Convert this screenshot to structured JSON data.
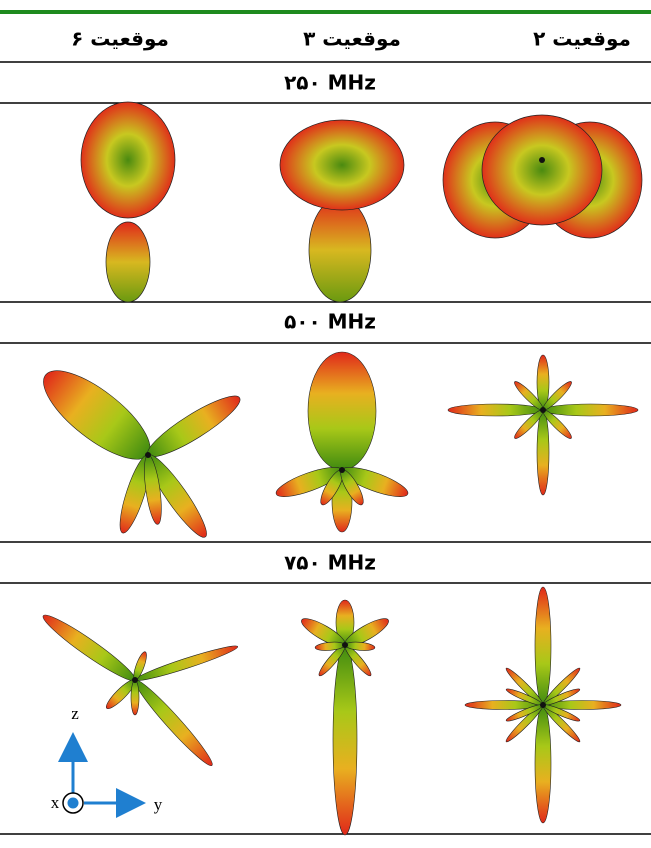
{
  "header": {
    "columns": [
      "موقعیت ۶",
      "موقعیت ۳",
      "موقعیت ۲"
    ]
  },
  "rows": [
    {
      "label": "۲۵۰ MHz"
    },
    {
      "label": "۵۰۰ MHz"
    },
    {
      "label": "۷۵۰ MHz"
    }
  ],
  "axes": {
    "z": "z",
    "x": "x",
    "y": "y"
  }
}
